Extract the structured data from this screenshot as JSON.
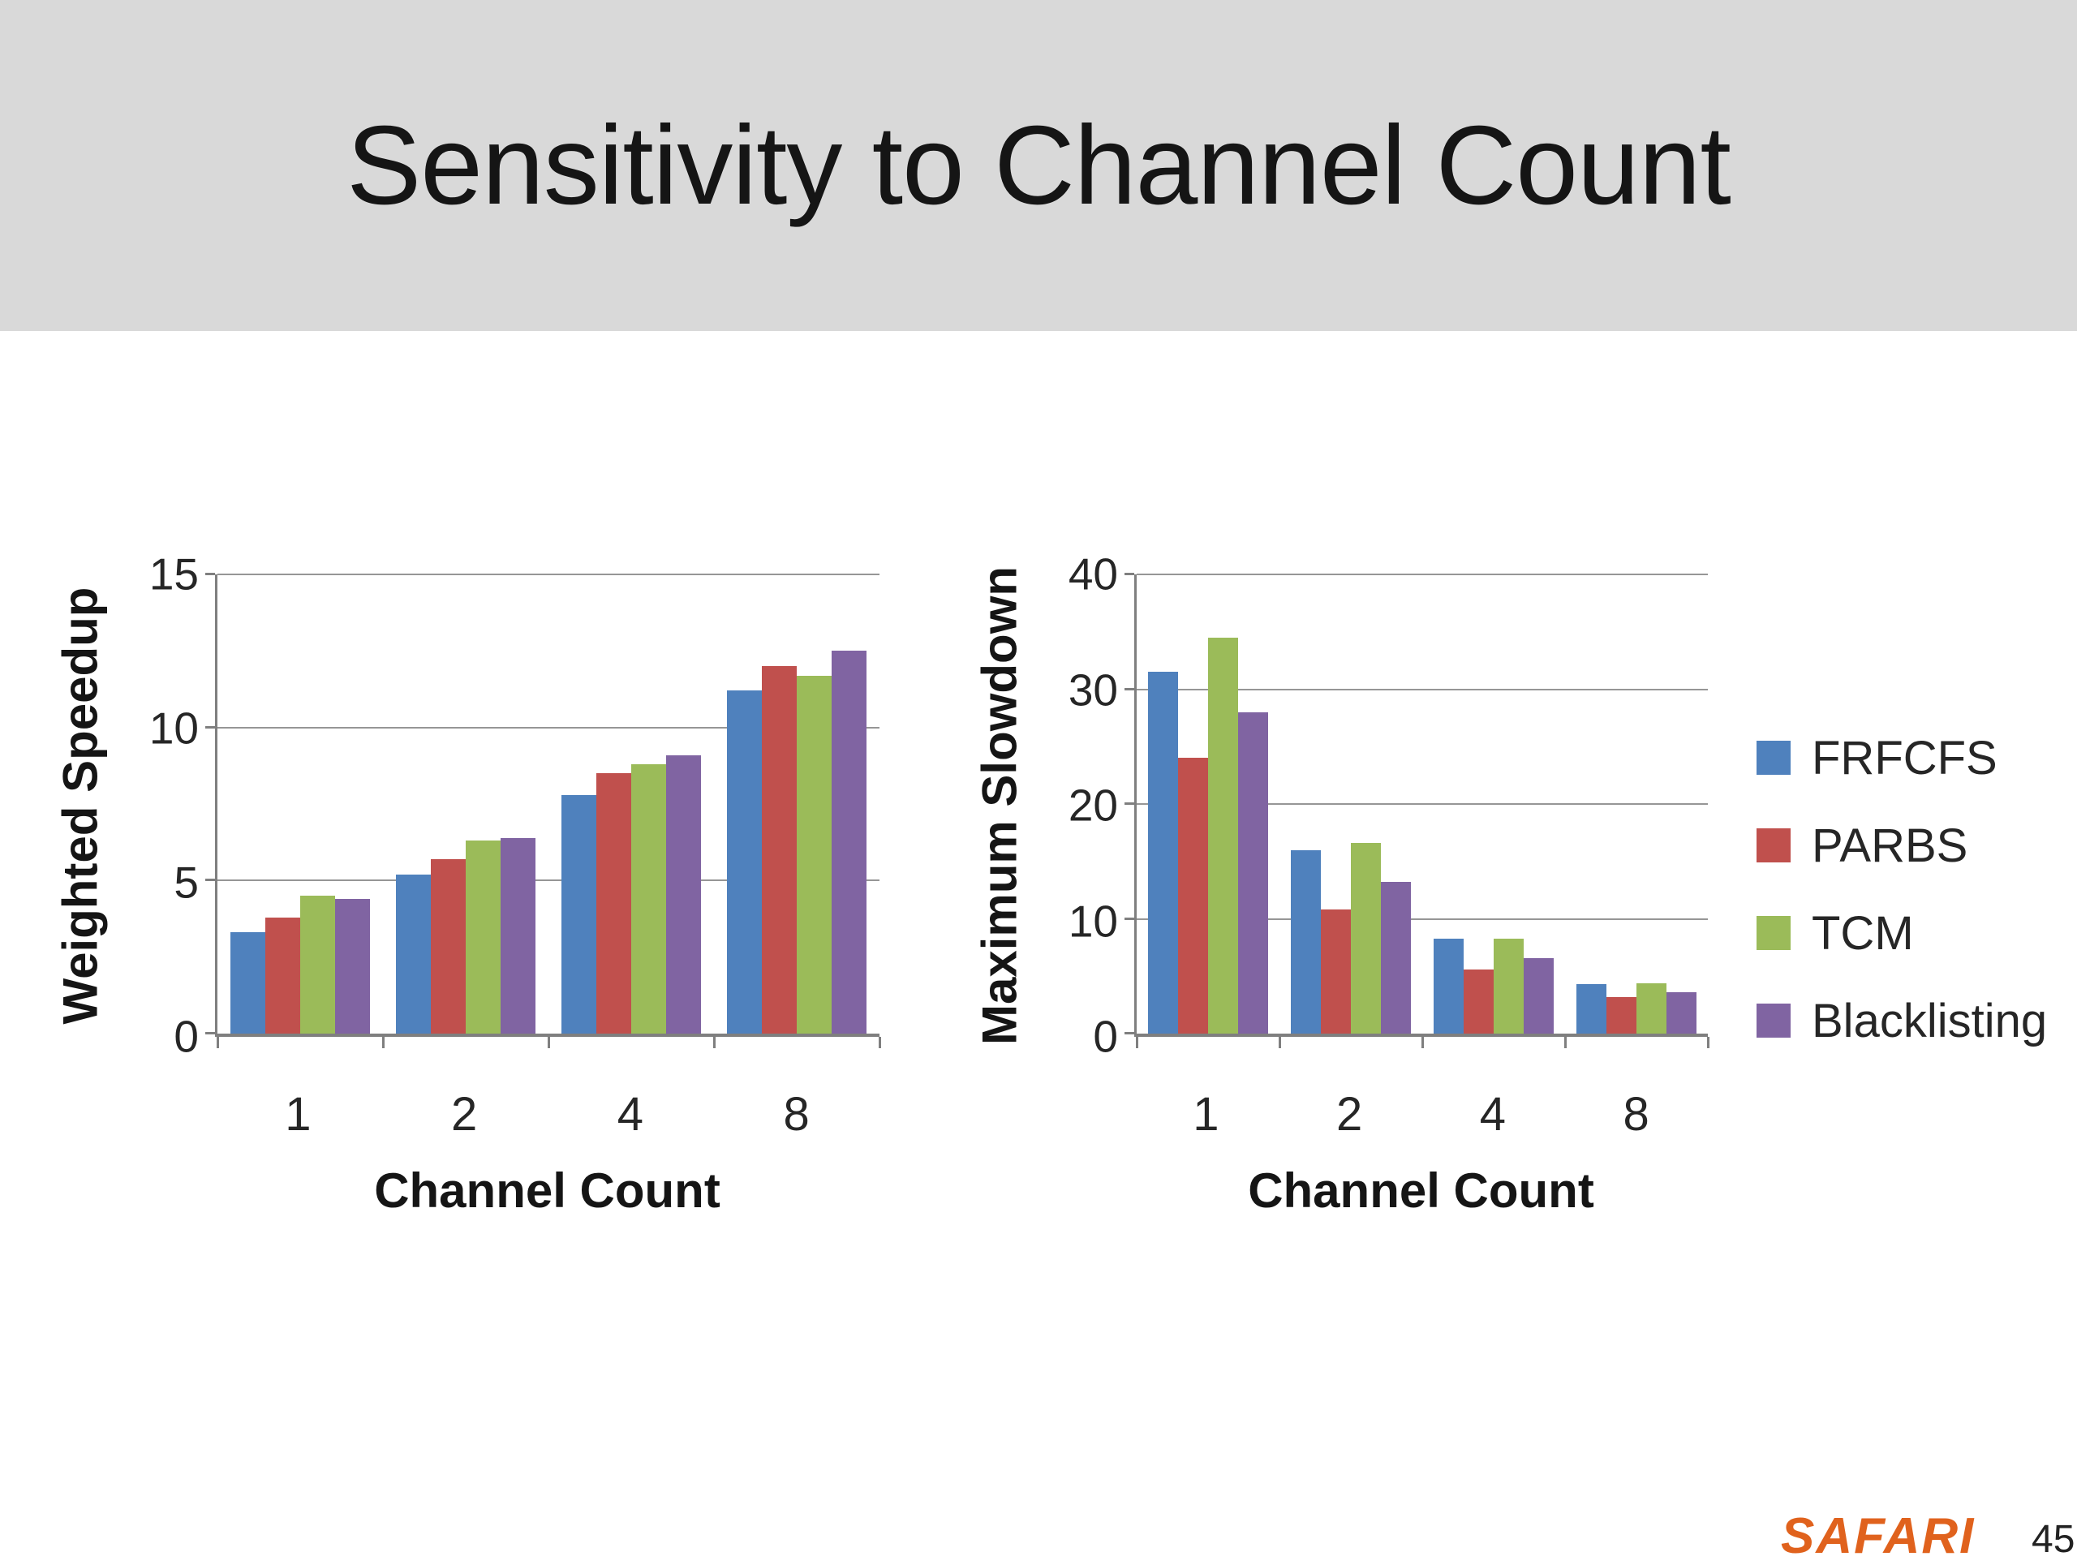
{
  "slide": {
    "title": "Sensitivity to Channel Count",
    "footer_logo": "SAFARI",
    "page_number": "45"
  },
  "colors": {
    "header_background": "#D9D9D9",
    "frfcfs": "#4F81BD",
    "parbs": "#C0504D",
    "tcm": "#9BBB59",
    "blacklisting": "#8064A2",
    "gridline": "#969696",
    "axis": "#7F7F7F",
    "logo_orange": "#E0621D"
  },
  "legend": {
    "position": "right",
    "entries": [
      {
        "label": "FRFCFS",
        "color": "#4F81BD"
      },
      {
        "label": "PARBS",
        "color": "#C0504D"
      },
      {
        "label": "TCM",
        "color": "#9BBB59"
      },
      {
        "label": "Blacklisting",
        "color": "#8064A2"
      }
    ]
  },
  "chart_data": [
    {
      "type": "bar",
      "title": "",
      "xlabel": "Channel Count",
      "ylabel": "Weighted Speedup",
      "categories": [
        "1",
        "2",
        "4",
        "8"
      ],
      "ylim": [
        0,
        15
      ],
      "yticks": [
        0,
        5,
        10,
        15
      ],
      "grid": true,
      "legend_position": "shared-right",
      "series": [
        {
          "name": "FRFCFS",
          "color": "#4F81BD",
          "values": [
            3.3,
            5.2,
            7.8,
            11.2
          ]
        },
        {
          "name": "PARBS",
          "color": "#C0504D",
          "values": [
            3.8,
            5.7,
            8.5,
            12.0
          ]
        },
        {
          "name": "TCM",
          "color": "#9BBB59",
          "values": [
            4.5,
            6.3,
            8.8,
            11.7
          ]
        },
        {
          "name": "Blacklisting",
          "color": "#8064A2",
          "values": [
            4.4,
            6.4,
            9.1,
            12.5
          ]
        }
      ]
    },
    {
      "type": "bar",
      "title": "",
      "xlabel": "Channel Count",
      "ylabel": "Maximum Slowdown",
      "categories": [
        "1",
        "2",
        "4",
        "8"
      ],
      "ylim": [
        0,
        40
      ],
      "yticks": [
        0,
        10,
        20,
        30,
        40
      ],
      "grid": true,
      "legend_position": "shared-right",
      "series": [
        {
          "name": "FRFCFS",
          "color": "#4F81BD",
          "values": [
            31.5,
            16.0,
            8.3,
            4.3
          ]
        },
        {
          "name": "PARBS",
          "color": "#C0504D",
          "values": [
            24.0,
            10.8,
            5.6,
            3.2
          ]
        },
        {
          "name": "TCM",
          "color": "#9BBB59",
          "values": [
            34.5,
            16.6,
            8.3,
            4.4
          ]
        },
        {
          "name": "Blacklisting",
          "color": "#8064A2",
          "values": [
            28.0,
            13.2,
            6.6,
            3.6
          ]
        }
      ]
    }
  ]
}
